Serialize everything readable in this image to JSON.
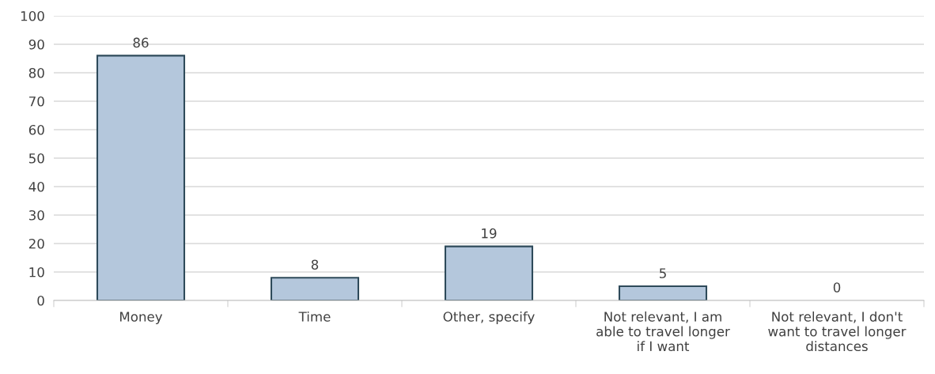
{
  "chart_data": {
    "type": "bar",
    "categories": [
      "Money",
      "Time",
      "Other, specify",
      "Not relevant, I am able to travel longer if I want",
      "Not relevant, I don't want to travel longer distances"
    ],
    "values": [
      86,
      8,
      19,
      5,
      0
    ],
    "color": "#b4c7dc",
    "ylim": [
      0,
      100
    ],
    "yticks": [
      0,
      10,
      20,
      30,
      40,
      50,
      60,
      70,
      80,
      90,
      100
    ],
    "grid": "y",
    "data_labels": true
  }
}
